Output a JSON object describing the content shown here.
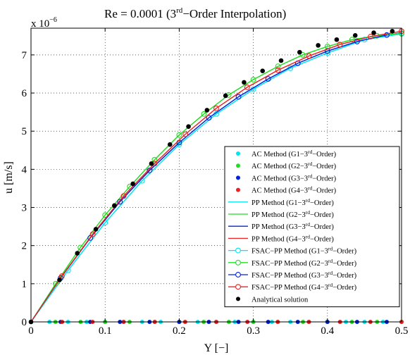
{
  "chart_data": {
    "type": "line",
    "title": {
      "prefix": "Re = 0.0001 (3",
      "superscript": "rd",
      "suffix": "−Order Interpolation)"
    },
    "xlabel": "Y [−]",
    "ylabel": "u [m/s]",
    "y_multiplier": {
      "base": "x 10",
      "exponent": "−6"
    },
    "xlim": [
      0,
      0.5
    ],
    "ylim": [
      0,
      7.7
    ],
    "xticks": [
      0,
      0.1,
      0.2,
      0.3,
      0.4,
      0.5
    ],
    "xtick_labels": [
      "0",
      "0.1",
      "0.2",
      "0.3",
      "0.4",
      "0.5"
    ],
    "yticks": [
      0,
      1,
      2,
      3,
      4,
      5,
      6,
      7
    ],
    "ytick_labels": [
      "0",
      "1",
      "2",
      "3",
      "4",
      "5",
      "6",
      "7"
    ],
    "grid": true,
    "legend_position": "bottom-right",
    "series": [
      {
        "name_prefix": "AC Method (G1−3",
        "name_sup": "rd",
        "name_suffix": "−Order)",
        "style": "dots",
        "color": "#00e5ee",
        "x": [
          0.0,
          0.025,
          0.05,
          0.075,
          0.1,
          0.125,
          0.15,
          0.175,
          0.2,
          0.225,
          0.25,
          0.275,
          0.3,
          0.325,
          0.35,
          0.375,
          0.4,
          0.425,
          0.45,
          0.475,
          0.5
        ],
        "y": [
          0,
          0,
          0,
          0,
          0,
          0,
          0,
          0,
          0,
          0,
          0,
          0,
          0,
          0,
          0,
          0,
          0,
          0,
          0,
          0,
          0
        ]
      },
      {
        "name_prefix": "AC Method (G2−3",
        "name_sup": "rd",
        "name_suffix": "−Order)",
        "style": "dots",
        "color": "#22dd22",
        "x": [
          0.0,
          0.033,
          0.067,
          0.1,
          0.133,
          0.167,
          0.2,
          0.233,
          0.267,
          0.3,
          0.333,
          0.367,
          0.4,
          0.433,
          0.467,
          0.5
        ],
        "y": [
          0,
          0,
          0,
          0,
          0,
          0,
          0,
          0,
          0,
          0,
          0,
          0,
          0,
          0,
          0,
          0
        ]
      },
      {
        "name_prefix": "AC Method (G3−3",
        "name_sup": "rd",
        "name_suffix": "−Order)",
        "style": "dots",
        "color": "#0022dd",
        "x": [
          0.0,
          0.04,
          0.08,
          0.12,
          0.16,
          0.2,
          0.24,
          0.28,
          0.32,
          0.36,
          0.4,
          0.44,
          0.48
        ],
        "y": [
          0,
          0,
          0,
          0,
          0,
          0,
          0,
          0,
          0,
          0,
          0,
          0,
          0
        ]
      },
      {
        "name_prefix": "AC Method (G4−3",
        "name_sup": "rd",
        "name_suffix": "−Order)",
        "style": "dots",
        "color": "#ee2222",
        "x": [
          0.0,
          0.042,
          0.083,
          0.125,
          0.167,
          0.208,
          0.25,
          0.292,
          0.333,
          0.375,
          0.417,
          0.458,
          0.5
        ],
        "y": [
          0,
          0,
          0,
          0,
          0,
          0,
          0,
          0,
          0,
          0,
          0,
          0,
          0
        ]
      },
      {
        "name_prefix": "PP Method (G1−3",
        "name_sup": "rd",
        "name_suffix": "−Order)",
        "style": "line",
        "color": "#00e5ee",
        "x": [
          0,
          0.05,
          0.1,
          0.15,
          0.2,
          0.25,
          0.3,
          0.35,
          0.4,
          0.45,
          0.5
        ],
        "y": [
          0,
          1.35,
          2.6,
          3.7,
          4.65,
          5.45,
          6.1,
          6.65,
          7.05,
          7.4,
          7.55
        ]
      },
      {
        "name_prefix": "PP Method (G2−3",
        "name_sup": "rd",
        "name_suffix": "−Order)",
        "style": "line",
        "color": "#22dd22",
        "x": [
          0,
          0.0333,
          0.0667,
          0.1,
          0.1333,
          0.1667,
          0.2,
          0.2333,
          0.2667,
          0.3,
          0.3333,
          0.3667,
          0.4,
          0.4333,
          0.4667,
          0.5
        ],
        "y": [
          0,
          1.0,
          1.95,
          2.8,
          3.55,
          4.25,
          4.9,
          5.45,
          5.95,
          6.35,
          6.7,
          7.0,
          7.22,
          7.4,
          7.5,
          7.57
        ]
      },
      {
        "name_prefix": "PP Method (G3−3",
        "name_sup": "rd",
        "name_suffix": "−Order)",
        "style": "line",
        "color": "#0022dd",
        "x": [
          0,
          0.04,
          0.08,
          0.12,
          0.16,
          0.2,
          0.24,
          0.28,
          0.32,
          0.36,
          0.4,
          0.44,
          0.48,
          0.5
        ],
        "y": [
          0,
          1.15,
          2.2,
          3.15,
          3.97,
          4.7,
          5.35,
          5.9,
          6.37,
          6.78,
          7.1,
          7.35,
          7.52,
          7.58
        ]
      },
      {
        "name_prefix": "PP Method (G4−3",
        "name_sup": "rd",
        "name_suffix": "−Order)",
        "style": "line",
        "color": "#ee2222",
        "x": [
          0,
          0.0417,
          0.0833,
          0.125,
          0.1667,
          0.2083,
          0.25,
          0.2917,
          0.3333,
          0.375,
          0.4167,
          0.4583,
          0.5
        ],
        "y": [
          0,
          1.2,
          2.3,
          3.3,
          4.15,
          4.92,
          5.6,
          6.15,
          6.6,
          6.97,
          7.27,
          7.48,
          7.62
        ]
      },
      {
        "name_prefix": "FSAC−PP Method (G1−3",
        "name_sup": "rd",
        "name_suffix": "−Order)",
        "style": "line-circle",
        "color": "#00e5ee",
        "x": [
          0,
          0.05,
          0.1,
          0.15,
          0.2,
          0.25,
          0.3,
          0.35,
          0.4,
          0.45,
          0.5
        ],
        "y": [
          0,
          1.35,
          2.6,
          3.7,
          4.65,
          5.45,
          6.1,
          6.65,
          7.05,
          7.4,
          7.55
        ]
      },
      {
        "name_prefix": "FSAC−PP Method (G2−3",
        "name_sup": "rd",
        "name_suffix": "−Order)",
        "style": "line-circle",
        "color": "#22dd22",
        "x": [
          0,
          0.0333,
          0.0667,
          0.1,
          0.1333,
          0.1667,
          0.2,
          0.2333,
          0.2667,
          0.3,
          0.3333,
          0.3667,
          0.4,
          0.4333,
          0.4667,
          0.5
        ],
        "y": [
          0,
          1.0,
          1.95,
          2.8,
          3.55,
          4.25,
          4.9,
          5.45,
          5.95,
          6.35,
          6.7,
          7.0,
          7.22,
          7.4,
          7.5,
          7.57
        ]
      },
      {
        "name_prefix": "FSAC−PP Method (G3−3",
        "name_sup": "rd",
        "name_suffix": "−Order)",
        "style": "line-circle",
        "color": "#0022dd",
        "x": [
          0,
          0.04,
          0.08,
          0.12,
          0.16,
          0.2,
          0.24,
          0.28,
          0.32,
          0.36,
          0.4,
          0.44,
          0.48
        ],
        "y": [
          0,
          1.15,
          2.2,
          3.15,
          3.97,
          4.7,
          5.35,
          5.9,
          6.37,
          6.78,
          7.1,
          7.35,
          7.52
        ]
      },
      {
        "name_prefix": "FSAC−PP Method (G4−3",
        "name_sup": "rd",
        "name_suffix": "−Order)",
        "style": "line-circle",
        "color": "#ee2222",
        "x": [
          0,
          0.0417,
          0.0833,
          0.125,
          0.1667,
          0.2083,
          0.25,
          0.2917,
          0.3333,
          0.375,
          0.4167,
          0.4583,
          0.5
        ],
        "y": [
          0,
          1.2,
          2.3,
          3.3,
          4.15,
          4.92,
          5.6,
          6.15,
          6.6,
          6.97,
          7.27,
          7.48,
          7.62
        ]
      },
      {
        "name_prefix": "Analytical solution",
        "name_sup": "",
        "name_suffix": "",
        "style": "black-dots",
        "color": "#000000",
        "x": [
          0,
          0.0385,
          0.0625,
          0.0875,
          0.1125,
          0.1375,
          0.1625,
          0.1875,
          0.2125,
          0.2375,
          0.2625,
          0.2875,
          0.3125,
          0.3375,
          0.3625,
          0.3875,
          0.4125,
          0.4375,
          0.4625,
          0.4875
        ],
        "y": [
          0,
          1.1,
          1.8,
          2.43,
          3.05,
          3.62,
          4.15,
          4.65,
          5.12,
          5.55,
          5.93,
          6.28,
          6.58,
          6.85,
          7.07,
          7.25,
          7.4,
          7.51,
          7.58,
          7.62
        ]
      }
    ]
  }
}
